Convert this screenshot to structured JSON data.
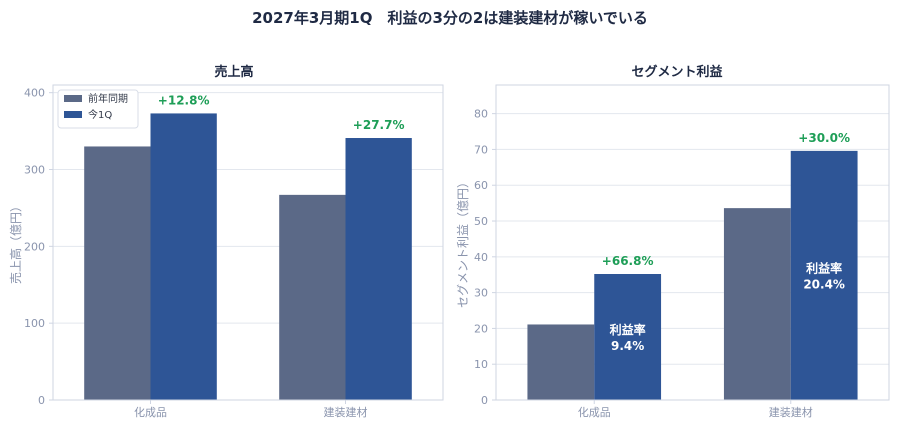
{
  "suptitle": "2027年3月期1Q　利益の3分の2は建装建材が稼いでいる",
  "colors": {
    "prior": "#5b6987",
    "current": "#2e5596",
    "growth": "#1e9e57",
    "axis_text": "#8a94ad",
    "title_text": "#1f2a44",
    "grid": "#e3e7ee",
    "spine": "#cfd5e2"
  },
  "chart_data": [
    {
      "type": "bar",
      "title": "売上高",
      "ylabel": "売上高（億円）",
      "xlabel": "",
      "categories": [
        "化成品",
        "建装建材"
      ],
      "series": [
        {
          "name": "前年同期",
          "values": [
            330,
            267
          ]
        },
        {
          "name": "今1Q",
          "values": [
            373,
            341
          ]
        }
      ],
      "growth_labels": [
        "+12.8%",
        "+27.7%"
      ],
      "ylim": [
        0,
        410
      ],
      "yticks": [
        0,
        100,
        200,
        300,
        400
      ],
      "grid": true,
      "legend": {
        "position": "top-left",
        "entries": [
          "前年同期",
          "今1Q"
        ]
      }
    },
    {
      "type": "bar",
      "title": "セグメント利益",
      "ylabel": "セグメント利益（億円）",
      "xlabel": "",
      "categories": [
        "化成品",
        "建装建材"
      ],
      "series": [
        {
          "name": "前年同期",
          "values": [
            21.1,
            53.6
          ]
        },
        {
          "name": "今1Q",
          "values": [
            35.2,
            69.6
          ]
        }
      ],
      "growth_labels": [
        "+66.8%",
        "+30.0%"
      ],
      "margin_labels": [
        {
          "title": "利益率",
          "value": "9.4%"
        },
        {
          "title": "利益率",
          "value": "20.4%"
        }
      ],
      "ylim": [
        0,
        88
      ],
      "yticks": [
        0,
        10,
        20,
        30,
        40,
        50,
        60,
        70,
        80
      ],
      "grid": true
    }
  ]
}
